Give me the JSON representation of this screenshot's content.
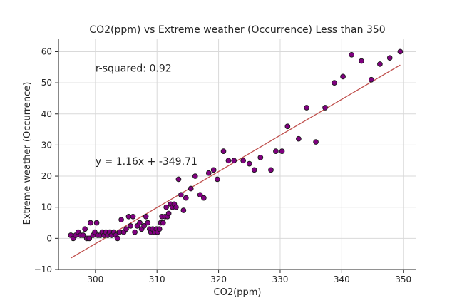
{
  "chart_data": {
    "type": "scatter",
    "title": "CO2(ppm) vs Extreme weather (Occurrence) Less than 350",
    "xlabel": "CO2(ppm)",
    "ylabel": "Extreme weather (Occurrence)",
    "xlim": [
      294,
      352
    ],
    "ylim": [
      -10,
      64
    ],
    "xticks": [
      300,
      310,
      320,
      330,
      340,
      350
    ],
    "yticks": [
      -10,
      0,
      10,
      20,
      30,
      40,
      50,
      60
    ],
    "grid": true,
    "colors": {
      "marker_fill": "#800080",
      "marker_edge": "#1a1a1a",
      "line": "#c0504d",
      "eq_text": "#ff0000",
      "r2_text": "#800080"
    },
    "annotations": {
      "r_squared": "r-squared: 0.92",
      "equation": "y = 1.16x + -349.71"
    },
    "regression": {
      "slope": 1.16,
      "intercept": -349.71,
      "x_range": [
        296,
        349.5
      ]
    },
    "points": [
      [
        296.0,
        1
      ],
      [
        296.4,
        0
      ],
      [
        296.8,
        1
      ],
      [
        297.2,
        2
      ],
      [
        297.6,
        1
      ],
      [
        298.0,
        1
      ],
      [
        298.3,
        3
      ],
      [
        298.6,
        0
      ],
      [
        299.0,
        0
      ],
      [
        299.2,
        5
      ],
      [
        299.6,
        1
      ],
      [
        299.9,
        2
      ],
      [
        300.2,
        5
      ],
      [
        300.4,
        1
      ],
      [
        300.8,
        1
      ],
      [
        301.1,
        2
      ],
      [
        301.4,
        1
      ],
      [
        301.7,
        2
      ],
      [
        302.0,
        1
      ],
      [
        302.3,
        2
      ],
      [
        302.6,
        1
      ],
      [
        303.0,
        2
      ],
      [
        303.3,
        1
      ],
      [
        303.6,
        0
      ],
      [
        303.9,
        2
      ],
      [
        304.2,
        6
      ],
      [
        304.6,
        2
      ],
      [
        305.0,
        3
      ],
      [
        305.4,
        7
      ],
      [
        305.7,
        4
      ],
      [
        306.1,
        7
      ],
      [
        306.4,
        2
      ],
      [
        306.8,
        4
      ],
      [
        307.2,
        5
      ],
      [
        307.5,
        3
      ],
      [
        307.9,
        4
      ],
      [
        308.2,
        7
      ],
      [
        308.5,
        5
      ],
      [
        308.8,
        3
      ],
      [
        309.0,
        2
      ],
      [
        309.3,
        3
      ],
      [
        309.6,
        2
      ],
      [
        309.9,
        3
      ],
      [
        310.1,
        2
      ],
      [
        310.4,
        3
      ],
      [
        310.6,
        5
      ],
      [
        310.8,
        7
      ],
      [
        311.0,
        5
      ],
      [
        311.3,
        7
      ],
      [
        311.5,
        10
      ],
      [
        311.7,
        7
      ],
      [
        311.9,
        8
      ],
      [
        312.2,
        11
      ],
      [
        312.5,
        10
      ],
      [
        312.8,
        11
      ],
      [
        313.1,
        10
      ],
      [
        313.5,
        19
      ],
      [
        313.9,
        14
      ],
      [
        314.3,
        9
      ],
      [
        314.7,
        13
      ],
      [
        315.5,
        16
      ],
      [
        316.2,
        20
      ],
      [
        317.0,
        14
      ],
      [
        317.6,
        13
      ],
      [
        318.4,
        21
      ],
      [
        319.2,
        22
      ],
      [
        319.8,
        19
      ],
      [
        320.8,
        28
      ],
      [
        321.6,
        25
      ],
      [
        322.5,
        25
      ],
      [
        324.0,
        25
      ],
      [
        325.0,
        24
      ],
      [
        325.8,
        22
      ],
      [
        326.8,
        26
      ],
      [
        328.5,
        22
      ],
      [
        329.3,
        28
      ],
      [
        330.3,
        28
      ],
      [
        331.2,
        36
      ],
      [
        333.0,
        32
      ],
      [
        334.3,
        42
      ],
      [
        335.8,
        31
      ],
      [
        337.3,
        42
      ],
      [
        338.8,
        50
      ],
      [
        340.2,
        52
      ],
      [
        341.6,
        59
      ],
      [
        343.2,
        57
      ],
      [
        344.8,
        51
      ],
      [
        346.2,
        56
      ],
      [
        347.8,
        58
      ],
      [
        349.5,
        60
      ]
    ]
  }
}
